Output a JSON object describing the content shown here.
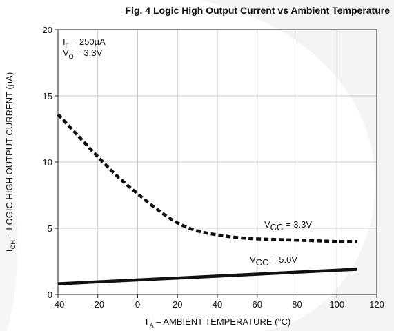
{
  "chart_data": {
    "type": "line",
    "title": "Fig. 4  Logic High Output Current vs Ambient Temperature",
    "xlabel": {
      "main": "T",
      "sub": "A",
      "rest": " – AMBIENT TEMPERATURE (°C)"
    },
    "ylabel": {
      "main": "I",
      "sub": "OH",
      "rest": " – LOGIC HIGH OUTPUT CURRENT (µA)"
    },
    "xlim": [
      -40,
      120
    ],
    "ylim": [
      0,
      20
    ],
    "xticks": [
      -40,
      -20,
      0,
      20,
      40,
      60,
      80,
      100,
      120
    ],
    "yticks": [
      0,
      5,
      10,
      15,
      20
    ],
    "grid": true,
    "conditions": [
      {
        "main": "I",
        "sub": "F",
        "rest": " = 250µA"
      },
      {
        "main": "V",
        "sub": "O",
        "rest": " = 3.3V"
      }
    ],
    "series": [
      {
        "name": {
          "main": "V",
          "sub": "CC",
          "rest": " = 3.3V"
        },
        "style": "dashed",
        "x": [
          -40,
          -30,
          -20,
          -10,
          0,
          10,
          20,
          30,
          40,
          50,
          60,
          70,
          80,
          90,
          100,
          110
        ],
        "y": [
          13.6,
          12.0,
          10.4,
          8.9,
          7.6,
          6.4,
          5.4,
          4.8,
          4.5,
          4.3,
          4.2,
          4.15,
          4.1,
          4.05,
          4.0,
          4.0
        ]
      },
      {
        "name": {
          "main": "V",
          "sub": "CC",
          "rest": " = 5.0V"
        },
        "style": "solid",
        "x": [
          -40,
          110
        ],
        "y": [
          0.8,
          1.9
        ]
      }
    ]
  }
}
